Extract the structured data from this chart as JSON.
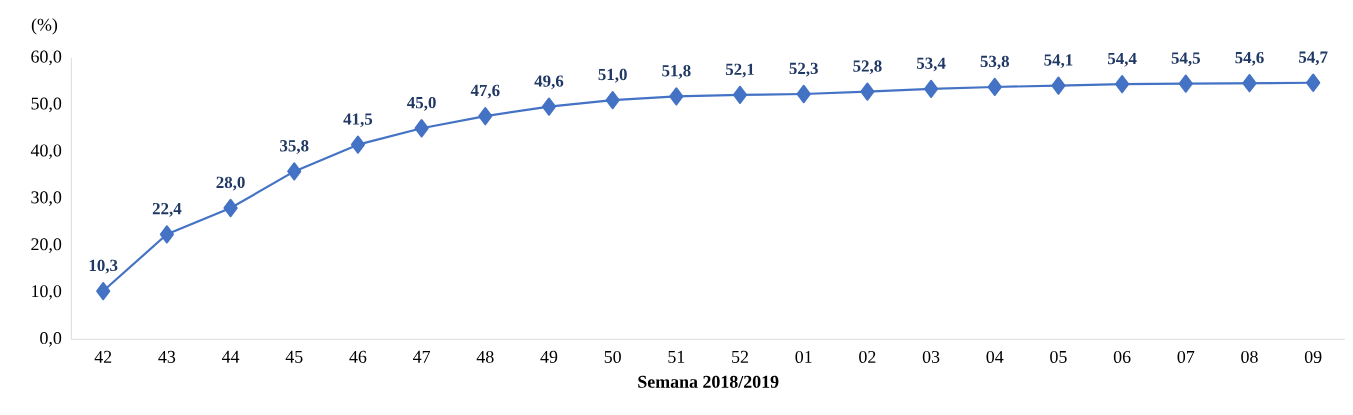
{
  "chart_data": {
    "type": "line",
    "xlabel": "Semana 2018/2019",
    "ylabel": "(%)",
    "categories": [
      "42",
      "43",
      "44",
      "45",
      "46",
      "47",
      "48",
      "49",
      "50",
      "51",
      "52",
      "01",
      "02",
      "03",
      "04",
      "05",
      "06",
      "07",
      "08",
      "09"
    ],
    "series": [
      {
        "color": "#4472c4",
        "values": [
          10.3,
          22.4,
          28.0,
          35.8,
          41.5,
          45.0,
          47.6,
          49.6,
          51.0,
          51.8,
          52.1,
          52.3,
          52.8,
          53.4,
          53.8,
          54.1,
          54.4,
          54.5,
          54.6,
          54.7
        ],
        "value_labels": [
          "10,3",
          "22,4",
          "28,0",
          "35,8",
          "41,5",
          "45,0",
          "47,6",
          "49,6",
          "51,0",
          "51,8",
          "52,1",
          "52,3",
          "52,8",
          "53,4",
          "53,8",
          "54,1",
          "54,4",
          "54,5",
          "54,6",
          "54,7"
        ]
      }
    ],
    "ylim": [
      0,
      60
    ],
    "yticks": [
      {
        "value": 0,
        "label": "0,0"
      },
      {
        "value": 10,
        "label": "10,0"
      },
      {
        "value": 20,
        "label": "20,0"
      },
      {
        "value": 30,
        "label": "30,0"
      },
      {
        "value": 40,
        "label": "40,0"
      },
      {
        "value": 50,
        "label": "50,0"
      },
      {
        "value": 60,
        "label": "60,0"
      }
    ],
    "marker": "diamond",
    "line_style": "solid",
    "grid": false,
    "legend": false
  }
}
